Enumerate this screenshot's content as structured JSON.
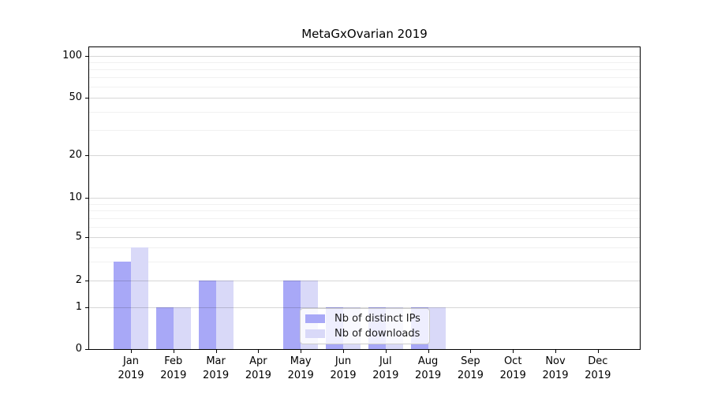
{
  "title": "MetaGxOvarian 2019",
  "chart_data": {
    "type": "bar",
    "title": "MetaGxOvarian 2019",
    "categories": [
      "Jan",
      "Feb",
      "Mar",
      "Apr",
      "May",
      "Jun",
      "Jul",
      "Aug",
      "Sep",
      "Oct",
      "Nov",
      "Dec"
    ],
    "year_label": "2019",
    "series": [
      {
        "name": "Nb of distinct IPs",
        "color": "#a8a8f7",
        "values": [
          3,
          1,
          2,
          0,
          2,
          1,
          1,
          1,
          0,
          0,
          0,
          0
        ]
      },
      {
        "name": "Nb of downloads",
        "color": "#d9d9f8",
        "values": [
          4,
          1,
          2,
          0,
          2,
          1,
          1,
          1,
          0,
          0,
          0,
          0
        ]
      }
    ],
    "xlabel": "",
    "ylabel": "",
    "y_scale": "log-like",
    "ylim": [
      0,
      100
    ],
    "y_ticks": [
      0,
      1,
      2,
      5,
      10,
      20,
      50,
      100
    ],
    "y_tick_labels": [
      "0",
      "1",
      "2",
      "5",
      "10",
      "20",
      "50",
      "100"
    ],
    "y_minor_gridlines": [
      3,
      4,
      6,
      7,
      8,
      9,
      30,
      40,
      60,
      70,
      80,
      90
    ],
    "grid": true,
    "legend_position": "lower-center-inside"
  }
}
